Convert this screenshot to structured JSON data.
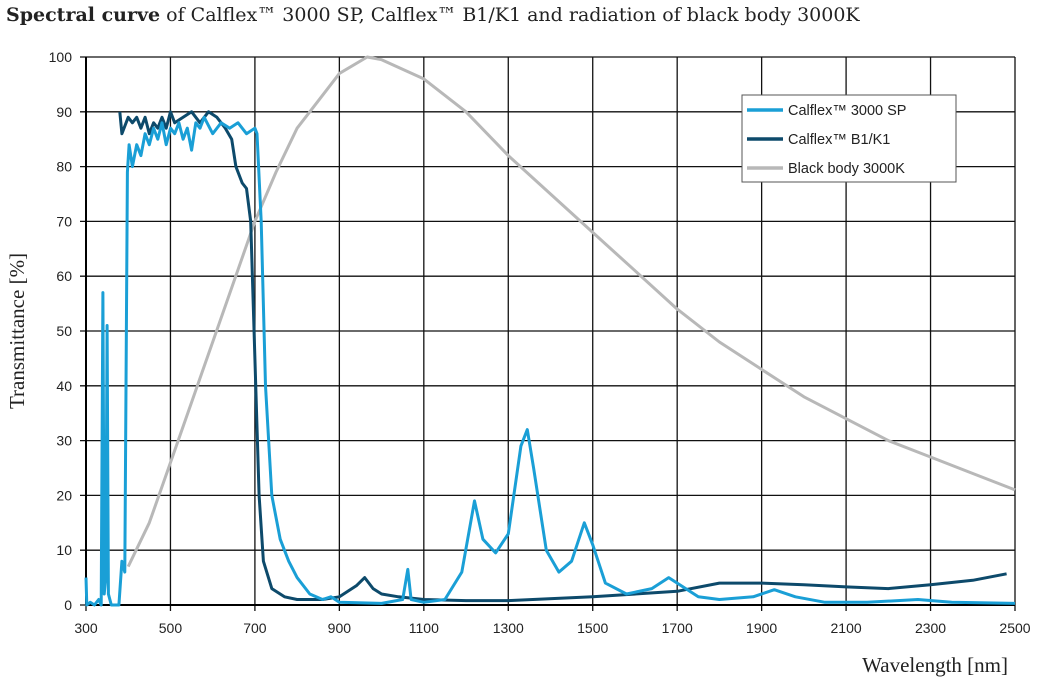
{
  "title_bold": "Spectral curve",
  "title_rest": " of Calflex™ 3000 SP, Calflex™ B1/K1 and radiation of black body 3000K",
  "chart_data": {
    "type": "line",
    "xlabel": "Wavelength [nm]",
    "ylabel": "Transmittance [%]",
    "xlim": [
      300,
      2500
    ],
    "ylim": [
      0,
      100
    ],
    "xticks": [
      300,
      500,
      700,
      900,
      1100,
      1300,
      1500,
      1700,
      1900,
      2100,
      2300,
      2500
    ],
    "yticks": [
      0,
      10,
      20,
      30,
      40,
      50,
      60,
      70,
      80,
      90,
      100
    ],
    "grid": true,
    "legend_position": "top-right",
    "series": [
      {
        "name": "Calflex™ 3000 SP",
        "color": "#1a9fd6",
        "points": [
          [
            300,
            5
          ],
          [
            302,
            0
          ],
          [
            310,
            0.5
          ],
          [
            320,
            0
          ],
          [
            330,
            1
          ],
          [
            336,
            0
          ],
          [
            340,
            57
          ],
          [
            343,
            2
          ],
          [
            347,
            5
          ],
          [
            350,
            51
          ],
          [
            353,
            2
          ],
          [
            360,
            0
          ],
          [
            378,
            0
          ],
          [
            385,
            8
          ],
          [
            392,
            6
          ],
          [
            398,
            79
          ],
          [
            402,
            84
          ],
          [
            410,
            80
          ],
          [
            420,
            84
          ],
          [
            430,
            82
          ],
          [
            440,
            86
          ],
          [
            450,
            84
          ],
          [
            460,
            87
          ],
          [
            470,
            85
          ],
          [
            480,
            88
          ],
          [
            490,
            84
          ],
          [
            500,
            87
          ],
          [
            510,
            86
          ],
          [
            520,
            88
          ],
          [
            530,
            85
          ],
          [
            540,
            87
          ],
          [
            550,
            83
          ],
          [
            560,
            88
          ],
          [
            570,
            87
          ],
          [
            580,
            89
          ],
          [
            600,
            86
          ],
          [
            620,
            88
          ],
          [
            640,
            87
          ],
          [
            660,
            88
          ],
          [
            680,
            86
          ],
          [
            700,
            87
          ],
          [
            705,
            86
          ],
          [
            715,
            70
          ],
          [
            725,
            40
          ],
          [
            740,
            20
          ],
          [
            760,
            12
          ],
          [
            780,
            8
          ],
          [
            800,
            5
          ],
          [
            830,
            2
          ],
          [
            860,
            1
          ],
          [
            880,
            1.5
          ],
          [
            900,
            0.5
          ],
          [
            1000,
            0.3
          ],
          [
            1050,
            1
          ],
          [
            1062,
            6.5
          ],
          [
            1070,
            1
          ],
          [
            1100,
            0.5
          ],
          [
            1150,
            1
          ],
          [
            1190,
            6
          ],
          [
            1220,
            19
          ],
          [
            1240,
            12
          ],
          [
            1270,
            9.5
          ],
          [
            1300,
            13
          ],
          [
            1330,
            29
          ],
          [
            1345,
            32
          ],
          [
            1360,
            25
          ],
          [
            1390,
            10
          ],
          [
            1420,
            6
          ],
          [
            1450,
            8
          ],
          [
            1480,
            15
          ],
          [
            1500,
            11
          ],
          [
            1530,
            4
          ],
          [
            1580,
            2
          ],
          [
            1640,
            3
          ],
          [
            1680,
            5
          ],
          [
            1700,
            4
          ],
          [
            1750,
            1.5
          ],
          [
            1800,
            1
          ],
          [
            1880,
            1.5
          ],
          [
            1930,
            2.8
          ],
          [
            1980,
            1.5
          ],
          [
            2050,
            0.5
          ],
          [
            2150,
            0.5
          ],
          [
            2270,
            1
          ],
          [
            2350,
            0.5
          ],
          [
            2500,
            0.3
          ]
        ]
      },
      {
        "name": "Calflex™ B1/K1",
        "color": "#0d4a6b",
        "points": [
          [
            380,
            90
          ],
          [
            385,
            86
          ],
          [
            400,
            89
          ],
          [
            410,
            88
          ],
          [
            420,
            89
          ],
          [
            430,
            87
          ],
          [
            440,
            89
          ],
          [
            450,
            86
          ],
          [
            460,
            88
          ],
          [
            470,
            87
          ],
          [
            480,
            89
          ],
          [
            490,
            87
          ],
          [
            500,
            90
          ],
          [
            510,
            88
          ],
          [
            530,
            89
          ],
          [
            550,
            90
          ],
          [
            570,
            88
          ],
          [
            590,
            90
          ],
          [
            610,
            89
          ],
          [
            630,
            87
          ],
          [
            645,
            85
          ],
          [
            655,
            80
          ],
          [
            670,
            77
          ],
          [
            680,
            76
          ],
          [
            690,
            70
          ],
          [
            700,
            45
          ],
          [
            710,
            20
          ],
          [
            720,
            8
          ],
          [
            740,
            3
          ],
          [
            770,
            1.5
          ],
          [
            800,
            1
          ],
          [
            860,
            1
          ],
          [
            900,
            1.5
          ],
          [
            940,
            3.5
          ],
          [
            960,
            5
          ],
          [
            980,
            3
          ],
          [
            1000,
            2
          ],
          [
            1040,
            1.5
          ],
          [
            1100,
            1
          ],
          [
            1200,
            0.8
          ],
          [
            1300,
            0.8
          ],
          [
            1500,
            1.5
          ],
          [
            1700,
            2.5
          ],
          [
            1800,
            4
          ],
          [
            1900,
            4
          ],
          [
            2000,
            3.7
          ],
          [
            2100,
            3.3
          ],
          [
            2200,
            3
          ],
          [
            2300,
            3.7
          ],
          [
            2400,
            4.5
          ],
          [
            2480,
            5.7
          ]
        ]
      },
      {
        "name": "Black body 3000K",
        "color": "#b8b8b8",
        "points": [
          [
            400,
            7
          ],
          [
            450,
            15
          ],
          [
            500,
            26
          ],
          [
            550,
            37
          ],
          [
            600,
            48
          ],
          [
            650,
            59
          ],
          [
            700,
            70
          ],
          [
            750,
            79
          ],
          [
            800,
            87
          ],
          [
            850,
            92
          ],
          [
            900,
            97
          ],
          [
            966,
            100
          ],
          [
            1000,
            99.5
          ],
          [
            1100,
            96
          ],
          [
            1200,
            90
          ],
          [
            1300,
            82
          ],
          [
            1400,
            75
          ],
          [
            1500,
            68
          ],
          [
            1600,
            61
          ],
          [
            1700,
            54
          ],
          [
            1800,
            48
          ],
          [
            1900,
            43
          ],
          [
            2000,
            38
          ],
          [
            2100,
            34
          ],
          [
            2200,
            30
          ],
          [
            2300,
            27
          ],
          [
            2400,
            24
          ],
          [
            2500,
            21
          ]
        ]
      }
    ]
  }
}
